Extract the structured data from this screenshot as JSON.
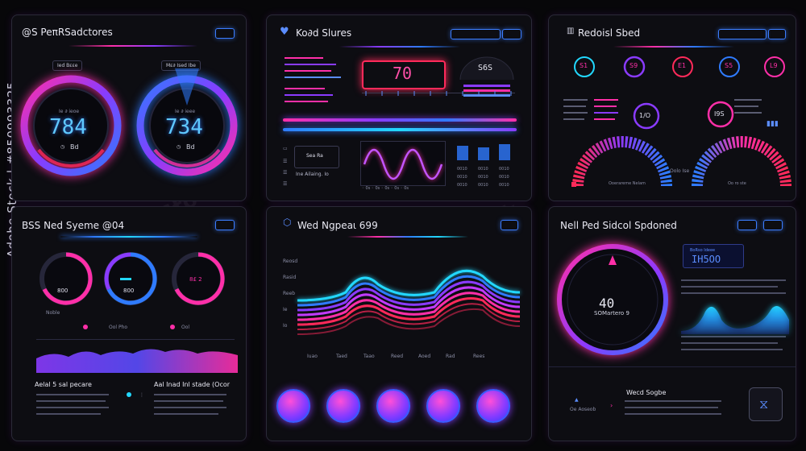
{
  "watermark": {
    "text": "Adobe Stock | #850993325",
    "logo": "Adobe Stock"
  },
  "colors": {
    "pink": "#ff2fa8",
    "purple": "#8a3bff",
    "blue": "#2f7bff",
    "cyan": "#22d8ff",
    "red": "#ff2a5a"
  },
  "panel1": {
    "title": "@S PeπRSadctores",
    "tag_left": "Ied Bεεe",
    "tag_right": "Mε∂ Ised Ibe",
    "gauge_left": {
      "value": "784",
      "sub": "Ie ∂ ieoe",
      "unit": "Bd"
    },
    "gauge_right": {
      "value": "734",
      "sub": "Ie ∂ ieee",
      "unit": "Bd"
    }
  },
  "panel2": {
    "title": "Ko∂d Slures",
    "readout": "70",
    "readout2": "S6S",
    "side_label": "Sea Ra",
    "note": "Ine Ailaing. Io"
  },
  "panel3": {
    "title": "Redoisl Sbed",
    "rings": [
      "S1",
      "S9",
      "E1",
      "S5",
      "L9"
    ],
    "mid_values": [
      "1/O",
      "I9S"
    ],
    "label_a": "Ooerareme Nelam",
    "label_b": "Oo ro ste",
    "label_c": "Oolo Ise"
  },
  "panel4": {
    "title": "BSS Ned Syeme @04",
    "gauges": [
      "800",
      "800",
      "8£ 2"
    ],
    "sub_labels": [
      "Noble",
      "Ool Pho",
      "Ool"
    ],
    "footer_title_left": "Aelal 5 sal pecare",
    "footer_title_right": "Aal Inad Inl stade (Ocor"
  },
  "panel5": {
    "title": "Wed Ngpeaι 699",
    "y_labels": [
      "Reosd",
      "Rasid",
      "Reeb",
      "Ie",
      "Io"
    ],
    "x_labels": [
      "Iuao",
      "Taed",
      "Taao",
      "Reed",
      "Aoed",
      "Rad",
      "Rees"
    ]
  },
  "panel6": {
    "title": "Nell Ped Sidcol Spdoned",
    "big_value": "40",
    "big_sub": "SOMartero 9",
    "price": "IH5OO",
    "price_label": "BoRso Ideee",
    "footer_title": "Wecd Sogbe",
    "footer_small": "Oe Aoseob"
  }
}
